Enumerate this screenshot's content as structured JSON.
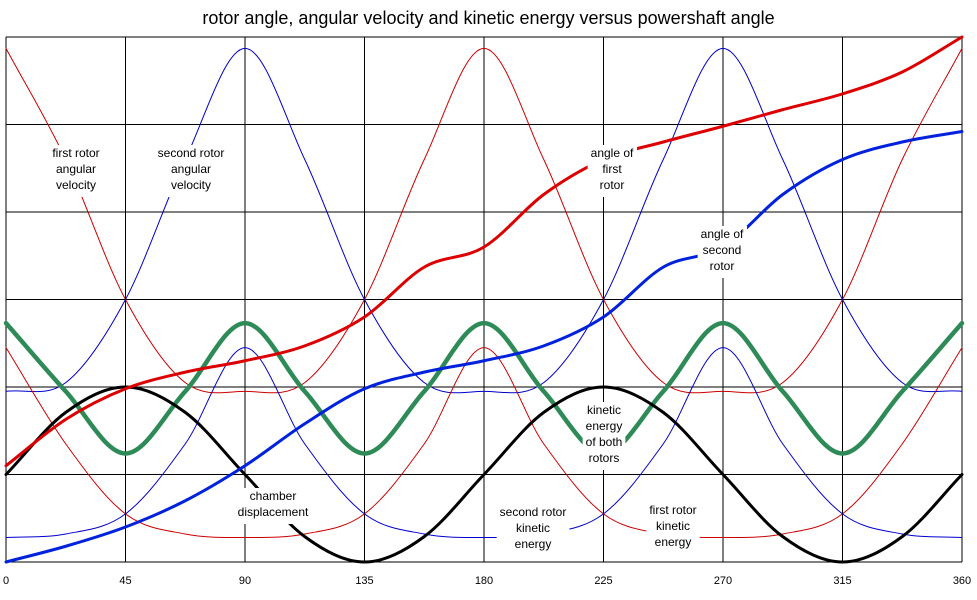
{
  "chart_data": {
    "type": "line",
    "title": "rotor angle, angular velocity and kinetic energy versus powershaft angle",
    "xlabel": "",
    "ylabel": "",
    "xlim": [
      0,
      360
    ],
    "ylim": [
      0,
      6
    ],
    "x_ticks": [
      "0",
      "45",
      "90",
      "135",
      "180",
      "225",
      "270",
      "315",
      "360"
    ],
    "grid": true,
    "legend": "none",
    "series": [
      {
        "name": "first rotor angular velocity",
        "color": "#cc0000",
        "line": "thin",
        "x": [
          0,
          22.5,
          45,
          67.5,
          90,
          112.5,
          135,
          157.5,
          180,
          202.5,
          225,
          247.5,
          270,
          292.5,
          315,
          337.5,
          360
        ],
        "y": [
          5.87,
          4.6,
          3.0,
          2.05,
          1.95,
          2.05,
          3.0,
          4.6,
          5.87,
          4.6,
          3.0,
          2.05,
          1.95,
          2.05,
          3.0,
          4.6,
          5.87
        ]
      },
      {
        "name": "second rotor angular velocity",
        "color": "#0000cc",
        "line": "thin",
        "x": [
          0,
          22.5,
          45,
          67.5,
          90,
          112.5,
          135,
          157.5,
          180,
          202.5,
          225,
          247.5,
          270,
          292.5,
          315,
          337.5,
          360
        ],
        "y": [
          1.95,
          2.05,
          3.0,
          4.6,
          5.87,
          4.6,
          3.0,
          2.05,
          1.95,
          2.05,
          3.0,
          4.6,
          5.87,
          4.6,
          3.0,
          2.05,
          1.95
        ]
      },
      {
        "name": "first rotor kinetic energy",
        "color": "#cc0000",
        "line": "thin",
        "x": [
          0,
          22.5,
          45,
          67.5,
          90,
          112.5,
          135,
          157.5,
          180,
          202.5,
          225,
          247.5,
          270,
          292.5,
          315,
          337.5,
          360
        ],
        "y": [
          2.45,
          1.35,
          0.55,
          0.32,
          0.28,
          0.32,
          0.55,
          1.35,
          2.45,
          1.35,
          0.55,
          0.32,
          0.28,
          0.32,
          0.55,
          1.35,
          2.45
        ]
      },
      {
        "name": "second rotor kinetic energy",
        "color": "#0000cc",
        "line": "thin",
        "x": [
          0,
          22.5,
          45,
          67.5,
          90,
          112.5,
          135,
          157.5,
          180,
          202.5,
          225,
          247.5,
          270,
          292.5,
          315,
          337.5,
          360
        ],
        "y": [
          0.28,
          0.32,
          0.55,
          1.35,
          2.45,
          1.35,
          0.55,
          0.32,
          0.28,
          0.32,
          0.55,
          1.35,
          2.45,
          1.35,
          0.55,
          0.32,
          0.28
        ]
      },
      {
        "name": "kinetic energy of both rotors",
        "color": "#2e8b57",
        "line": "thick",
        "x": [
          0,
          22.5,
          45,
          67.5,
          90,
          112.5,
          135,
          157.5,
          180,
          202.5,
          225,
          247.5,
          270,
          292.5,
          315,
          337.5,
          360
        ],
        "y": [
          2.73,
          1.95,
          1.24,
          1.95,
          2.73,
          1.95,
          1.24,
          1.95,
          2.73,
          1.95,
          1.24,
          1.95,
          2.73,
          1.95,
          1.24,
          1.95,
          2.73
        ]
      },
      {
        "name": "chamber displacement",
        "color": "#000000",
        "line": "thick",
        "x": [
          0,
          22.5,
          45,
          67.5,
          90,
          112.5,
          135,
          157.5,
          180,
          202.5,
          225,
          247.5,
          270,
          292.5,
          315,
          337.5,
          360
        ],
        "y": [
          1.0,
          1.71,
          2.0,
          1.71,
          1.0,
          0.29,
          0.0,
          0.29,
          1.0,
          1.71,
          2.0,
          1.71,
          1.0,
          0.29,
          0.0,
          0.29,
          1.0
        ]
      },
      {
        "name": "angle of first rotor",
        "color": "#dd0000",
        "line": "thick",
        "x": [
          0,
          22.5,
          45,
          67.5,
          90,
          112.5,
          135,
          157.5,
          180,
          202.5,
          225,
          247.5,
          270,
          292.5,
          315,
          337.5,
          360
        ],
        "y": [
          1.1,
          1.63,
          1.98,
          2.17,
          2.3,
          2.47,
          2.8,
          3.37,
          3.6,
          4.2,
          4.6,
          4.8,
          4.98,
          5.17,
          5.35,
          5.6,
          6.0
        ]
      },
      {
        "name": "angle of second rotor",
        "color": "#0022dd",
        "line": "thick",
        "x": [
          0,
          22.5,
          45,
          67.5,
          90,
          112.5,
          135,
          157.5,
          180,
          202.5,
          225,
          247.5,
          270,
          292.5,
          315,
          337.5,
          360
        ],
        "y": [
          0.0,
          0.18,
          0.4,
          0.7,
          1.1,
          1.58,
          1.98,
          2.17,
          2.3,
          2.47,
          2.8,
          3.37,
          3.6,
          4.2,
          4.6,
          4.8,
          4.92
        ]
      }
    ]
  },
  "annotations": {
    "first_rotor_angular_velocity": [
      "first rotor",
      "angular",
      "velocity"
    ],
    "second_rotor_angular_velocity": [
      "second rotor",
      "angular",
      "velocity"
    ],
    "angle_of_first_rotor": [
      "angle of",
      "first",
      "rotor"
    ],
    "angle_of_second_rotor": [
      "angle of",
      "second",
      "rotor"
    ],
    "kinetic_energy_of_both_rotors": [
      "kinetic",
      "energy",
      "of both",
      "rotors"
    ],
    "chamber_displacement": [
      "chamber",
      "displacement"
    ],
    "second_rotor_kinetic_energy": [
      "second rotor",
      "kinetic",
      "energy"
    ],
    "first_rotor_kinetic_energy": [
      "first rotor",
      "kinetic",
      "energy"
    ]
  }
}
